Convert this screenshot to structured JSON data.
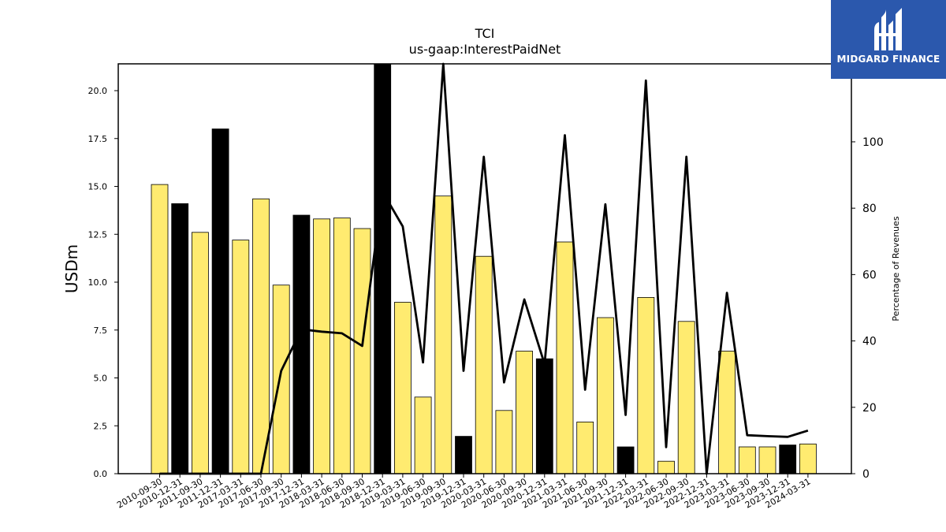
{
  "chart_data": {
    "type": "bar",
    "title": "TCI",
    "subtitle": "us-gaap:InterestPaidNet",
    "ylabel": "USDm",
    "y2label": "Percentage of Revenues",
    "ylim": [
      0,
      21.4
    ],
    "y2lim": [
      0,
      123.5
    ],
    "yticks": [
      "0.0",
      "2.5",
      "5.0",
      "7.5",
      "10.0",
      "12.5",
      "15.0",
      "17.5",
      "20.0"
    ],
    "y2ticks": [
      "0",
      "20",
      "40",
      "60",
      "80",
      "100"
    ],
    "grid": false,
    "categories": [
      "2010-09-30",
      "2010-12-31",
      "2011-09-30",
      "2011-12-31",
      "2017-03-31",
      "2017-06-30",
      "2017-09-30",
      "2017-12-31",
      "2018-03-31",
      "2018-06-30",
      "2018-09-30",
      "2018-12-31",
      "2019-03-31",
      "2019-06-30",
      "2019-09-30",
      "2019-12-31",
      "2020-03-31",
      "2020-06-30",
      "2020-09-30",
      "2020-12-31",
      "2021-03-31",
      "2021-06-30",
      "2021-09-30",
      "2021-12-31",
      "2022-03-31",
      "2022-06-30",
      "2022-09-30",
      "2022-12-31",
      "2023-03-31",
      "2023-06-30",
      "2023-09-30",
      "2023-12-31",
      "2024-03-31"
    ],
    "series": [
      {
        "kind": "bar",
        "values": [
          15.1,
          14.1,
          12.6,
          18.0,
          12.2,
          14.35,
          9.85,
          13.5,
          13.3,
          13.35,
          12.8,
          21.4,
          8.95,
          4.0,
          14.5,
          1.95,
          11.35,
          3.3,
          6.4,
          6.0,
          12.1,
          2.7,
          8.15,
          1.4,
          9.2,
          0.65,
          7.95,
          0.0,
          6.4,
          1.4,
          1.4,
          1.5,
          1.55
        ],
        "colors": [
          "#ffeb70",
          "#000000",
          "#ffeb70",
          "#000000",
          "#ffeb70",
          "#ffeb70",
          "#ffeb70",
          "#000000",
          "#ffeb70",
          "#ffeb70",
          "#ffeb70",
          "#000000",
          "#ffeb70",
          "#ffeb70",
          "#ffeb70",
          "#000000",
          "#ffeb70",
          "#ffeb70",
          "#ffeb70",
          "#000000",
          "#ffeb70",
          "#ffeb70",
          "#ffeb70",
          "#000000",
          "#ffeb70",
          "#ffeb70",
          "#ffeb70",
          "#000000",
          "#ffeb70",
          "#ffeb70",
          "#ffeb70",
          "#000000",
          "#ffeb70"
        ]
      },
      {
        "kind": "line",
        "axis": "right",
        "color": "#000000",
        "values": [
          0,
          0,
          0,
          0,
          0,
          0,
          31,
          43.5,
          42.8,
          42.3,
          38.5,
          85,
          74.5,
          33.5,
          123.5,
          31,
          95.5,
          27.5,
          52.5,
          33,
          102,
          25.3,
          81.2,
          17.7,
          118.5,
          8,
          95.5,
          0,
          54.5,
          11.6,
          11.3,
          11.1,
          13
        ]
      }
    ]
  },
  "logo": {
    "text": "MIDGARD FINANCE"
  }
}
